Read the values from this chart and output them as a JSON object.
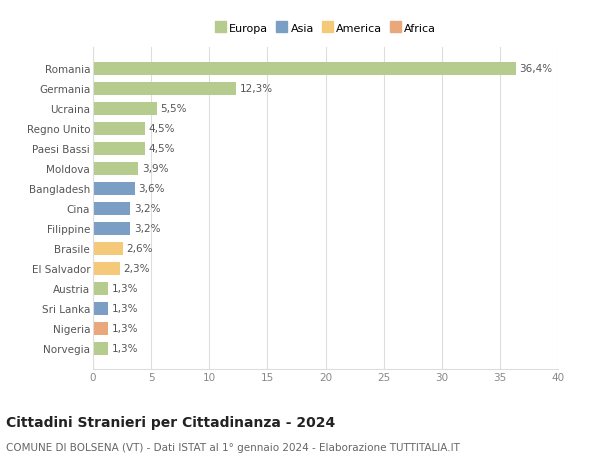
{
  "countries": [
    "Romania",
    "Germania",
    "Ucraina",
    "Regno Unito",
    "Paesi Bassi",
    "Moldova",
    "Bangladesh",
    "Cina",
    "Filippine",
    "Brasile",
    "El Salvador",
    "Austria",
    "Sri Lanka",
    "Nigeria",
    "Norvegia"
  ],
  "values": [
    36.4,
    12.3,
    5.5,
    4.5,
    4.5,
    3.9,
    3.6,
    3.2,
    3.2,
    2.6,
    2.3,
    1.3,
    1.3,
    1.3,
    1.3
  ],
  "labels": [
    "36,4%",
    "12,3%",
    "5,5%",
    "4,5%",
    "4,5%",
    "3,9%",
    "3,6%",
    "3,2%",
    "3,2%",
    "2,6%",
    "2,3%",
    "1,3%",
    "1,3%",
    "1,3%",
    "1,3%"
  ],
  "continents": [
    "Europa",
    "Europa",
    "Europa",
    "Europa",
    "Europa",
    "Europa",
    "Asia",
    "Asia",
    "Asia",
    "America",
    "America",
    "Europa",
    "Asia",
    "Africa",
    "Europa"
  ],
  "colors": {
    "Europa": "#b5cc8e",
    "Asia": "#7b9ec4",
    "America": "#f5c97a",
    "Africa": "#e8a87c"
  },
  "xlim": [
    0,
    40
  ],
  "xticks": [
    0,
    5,
    10,
    15,
    20,
    25,
    30,
    35,
    40
  ],
  "title": "Cittadini Stranieri per Cittadinanza - 2024",
  "subtitle": "COMUNE DI BOLSENA (VT) - Dati ISTAT al 1° gennaio 2024 - Elaborazione TUTTITALIA.IT",
  "background_color": "#ffffff",
  "grid_color": "#dddddd",
  "bar_height": 0.65,
  "label_fontsize": 7.5,
  "tick_fontsize": 7.5,
  "title_fontsize": 10,
  "subtitle_fontsize": 7.5,
  "legend_entries": [
    "Europa",
    "Asia",
    "America",
    "Africa"
  ]
}
